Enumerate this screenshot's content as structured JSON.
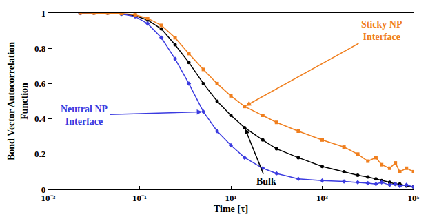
{
  "chart_data": {
    "type": "line",
    "x_label": "Time [τ]",
    "y_label": "Bond Vector Autocorrelation Function",
    "log": "x",
    "grid": false,
    "xlim": [
      0.001,
      100000
    ],
    "xticks": [
      {
        "value": 0.001,
        "label": "10⁻³"
      },
      {
        "value": 0.1,
        "label": "10⁻¹"
      },
      {
        "value": 10,
        "label": "10¹"
      },
      {
        "value": 1000,
        "label": "10³"
      },
      {
        "value": 100000,
        "label": "10⁵"
      }
    ],
    "ylim": [
      0,
      1
    ],
    "yticks": [
      0,
      0.2,
      0.4,
      0.6,
      0.8,
      1
    ],
    "x": [
      0.005,
      0.01,
      0.02,
      0.04,
      0.08,
      0.15,
      0.3,
      0.6,
      1.2,
      2.5,
      5,
      10,
      20,
      50,
      100,
      300,
      1000,
      3000,
      6000,
      10000,
      15000,
      20000,
      30000,
      40000,
      50000,
      70000,
      100000
    ],
    "series": [
      {
        "name": "Bulk",
        "color": "#000000",
        "marker": "circle",
        "line_style": "solid",
        "values": [
          1,
          1,
          1,
          0.995,
          0.985,
          0.96,
          0.91,
          0.82,
          0.72,
          0.6,
          0.5,
          0.42,
          0.35,
          0.28,
          0.23,
          0.18,
          0.13,
          0.1,
          0.08,
          0.07,
          0.06,
          0.05,
          0.04,
          0.03,
          0.03,
          0.02,
          0.015
        ]
      },
      {
        "name": "Neutral NP Interface",
        "color": "#3b3be0",
        "marker": "diamond",
        "line_style": "solid",
        "values": [
          1,
          1,
          1,
          0.995,
          0.98,
          0.94,
          0.86,
          0.74,
          0.6,
          0.44,
          0.33,
          0.25,
          0.18,
          0.12,
          0.09,
          0.06,
          0.05,
          0.045,
          0.04,
          0.035,
          0.03,
          0.04,
          0.025,
          0.03,
          0.02,
          0.025,
          0.015
        ]
      },
      {
        "name": "Sticky NP Interface",
        "color": "#f07f1e",
        "marker": "square",
        "line_style": "solid",
        "values": [
          1,
          1,
          1,
          0.998,
          0.99,
          0.97,
          0.93,
          0.86,
          0.77,
          0.68,
          0.6,
          0.53,
          0.47,
          0.42,
          0.38,
          0.33,
          0.28,
          0.24,
          0.2,
          0.16,
          0.18,
          0.14,
          0.12,
          0.15,
          0.1,
          0.12,
          0.1
        ]
      }
    ]
  }
}
